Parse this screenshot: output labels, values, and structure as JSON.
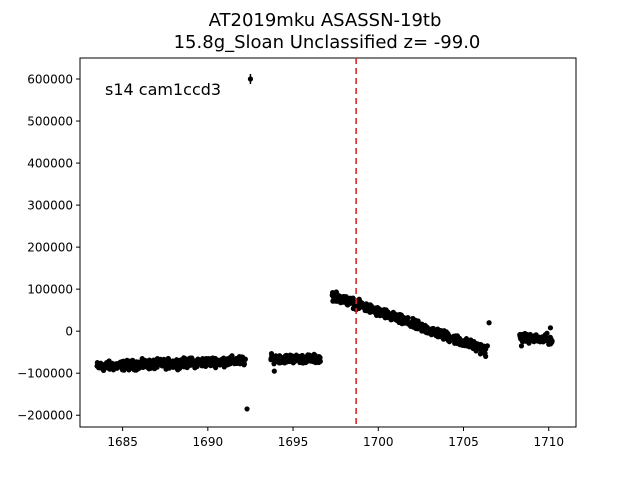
{
  "chart_data": {
    "type": "scatter",
    "title": [
      "AT2019mku  ASASSN-19tb",
      "15.8g_Sloan Unclassified z= -99.0"
    ],
    "xlabel": "",
    "ylabel": "",
    "annotation": "s14 cam1ccd3",
    "xlim": [
      1682.5,
      1711.6
    ],
    "ylim": [
      -228000,
      650000
    ],
    "xticks": [
      1685,
      1690,
      1695,
      1700,
      1705,
      1710
    ],
    "xtick_labels": [
      "1685",
      "1690",
      "1695",
      "1700",
      "1705",
      "1710"
    ],
    "yticks": [
      -200000,
      -100000,
      0,
      100000,
      200000,
      300000,
      400000,
      500000,
      600000
    ],
    "ytick_labels": [
      "−200000",
      "−100000",
      "0",
      "100000",
      "200000",
      "300000",
      "400000",
      "500000",
      "600000"
    ],
    "vline": {
      "x": 1698.7,
      "color": "#d62728",
      "style": "dashed"
    },
    "grid": false,
    "marker_color": "#000000",
    "segments": [
      {
        "x_start": 1683.5,
        "x_end": 1692.2,
        "y_start": -84000,
        "y_end": -70000,
        "scatter": 9000
      },
      {
        "x_start": 1693.7,
        "x_end": 1696.6,
        "y_start": -65000,
        "y_end": -66000,
        "scatter": 8000
      },
      {
        "x_start": 1697.3,
        "x_end": 1706.3,
        "y_start": 85000,
        "y_end": -45000,
        "scatter": 9000
      },
      {
        "x_start": 1708.3,
        "x_end": 1710.2,
        "y_start": -15000,
        "y_end": -22000,
        "scatter": 8000
      }
    ],
    "outliers": [
      {
        "x": 1692.5,
        "y": 600000,
        "err": 12000
      },
      {
        "x": 1692.3,
        "y": -185000
      },
      {
        "x": 1693.9,
        "y": -95000
      },
      {
        "x": 1706.5,
        "y": 20000
      },
      {
        "x": 1706.4,
        "y": -35000
      },
      {
        "x": 1706.3,
        "y": -60000
      },
      {
        "x": 1708.4,
        "y": -35000
      },
      {
        "x": 1710.1,
        "y": 8000
      },
      {
        "x": 1709.9,
        "y": -5000
      },
      {
        "x": 1703.8,
        "y": -2000
      }
    ]
  }
}
